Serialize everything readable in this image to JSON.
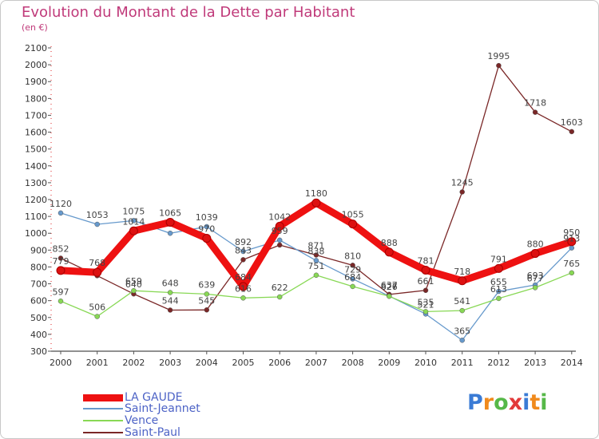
{
  "title": "Evolution du Montant de la Dette par Habitant",
  "subtitle": "(en €)",
  "logo_text": "Proxiti",
  "chart_data": {
    "type": "line",
    "x": [
      "2000",
      "2001",
      "2002",
      "2003",
      "2004",
      "2005",
      "2006",
      "2007",
      "2008",
      "2009",
      "2010",
      "2011",
      "2012",
      "2013",
      "2014"
    ],
    "ylim": [
      300,
      2100
    ],
    "yticks": [
      300,
      400,
      500,
      600,
      700,
      800,
      900,
      1000,
      1100,
      1200,
      1300,
      1400,
      1500,
      1600,
      1700,
      1800,
      1900,
      2000,
      2100
    ],
    "grid": false,
    "legend_position": "bottom-left",
    "series": [
      {
        "name": "LA GAUDE",
        "color": "#ee1111",
        "values": [
          779,
          768,
          1014,
          1065,
          970,
          684,
          1042,
          1180,
          1055,
          888,
          781,
          718,
          791,
          880,
          950
        ],
        "labels": [
          "779",
          "768",
          "1014",
          "1065",
          "970",
          "684",
          "1042",
          "1180",
          "1055",
          "888",
          "781",
          "718",
          "791",
          "880",
          "950"
        ]
      },
      {
        "name": "Saint-Jeannet",
        "color": "#6699cc",
        "values": [
          1120,
          1053,
          1075,
          1000,
          1039,
          892,
          959,
          838,
          729,
          627,
          521,
          365,
          655,
          693,
          913
        ],
        "labels": [
          "1120",
          "1053",
          "1075",
          "",
          "1039",
          "892",
          "959",
          "838",
          "729",
          "627",
          "521",
          "365",
          "655",
          "693",
          "913"
        ]
      },
      {
        "name": "Vence",
        "color": "#88d855",
        "values": [
          597,
          506,
          659,
          648,
          639,
          616,
          622,
          751,
          684,
          626,
          535,
          541,
          613,
          677,
          765
        ],
        "labels": [
          "597",
          "506",
          "659",
          "648",
          "639",
          "616",
          "622",
          "751",
          "684",
          "626",
          "535",
          "541",
          "613",
          "677",
          "765"
        ]
      },
      {
        "name": "Saint-Paul",
        "color": "#7a2727",
        "values": [
          852,
          748,
          640,
          544,
          545,
          843,
          930,
          871,
          810,
          637,
          661,
          1245,
          1995,
          1718,
          1603
        ],
        "labels": [
          "852",
          "",
          "640",
          "544",
          "545",
          "843",
          "",
          "871",
          "810",
          "637",
          "661",
          "1245",
          "1995",
          "1718",
          "1603"
        ]
      }
    ]
  }
}
